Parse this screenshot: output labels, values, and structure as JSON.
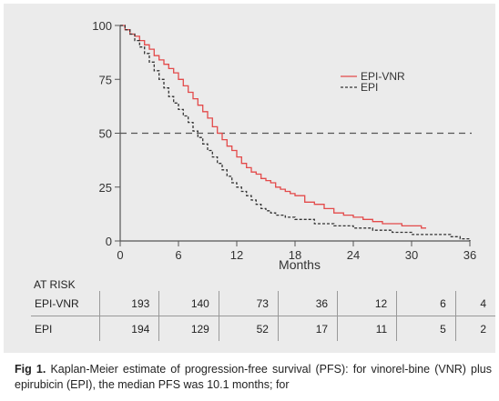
{
  "chart_data": {
    "type": "line",
    "title": "",
    "xlabel": "Months",
    "ylabel": "",
    "xlim": [
      0,
      36
    ],
    "ylim": [
      0,
      100
    ],
    "x_ticks": [
      "0",
      "6",
      "12",
      "18",
      "24",
      "30",
      "36"
    ],
    "y_ticks": [
      "0",
      "25",
      "50",
      "75",
      "100"
    ],
    "reference_line": {
      "y": 50,
      "style": "dashed",
      "color": "#555555"
    },
    "legend_position": "top-right",
    "series": [
      {
        "name": "EPI-VNR",
        "color": "#e34a4a",
        "style": "solid",
        "x": [
          0,
          0.5,
          1,
          1.5,
          2,
          2.5,
          3,
          3.5,
          4,
          4.5,
          5,
          5.5,
          6,
          6.5,
          7,
          7.5,
          8,
          8.5,
          9,
          9.5,
          10,
          10.5,
          11,
          11.5,
          12,
          12.5,
          13,
          13.5,
          14,
          14.5,
          15,
          15.5,
          16,
          16.5,
          17,
          17.5,
          18,
          19,
          20,
          21,
          22,
          23,
          24,
          25,
          26,
          27,
          28,
          29,
          30,
          31,
          31.5
        ],
        "y": [
          100,
          98,
          96,
          95,
          93,
          91,
          89,
          86,
          84,
          82,
          80,
          78,
          75,
          72,
          69,
          66,
          63,
          60,
          57,
          53,
          50,
          47,
          44,
          42,
          39,
          36,
          34,
          32,
          31,
          29,
          28,
          27,
          25,
          24,
          23,
          22,
          21,
          18,
          17,
          15,
          13,
          12,
          11,
          10,
          9,
          8,
          8,
          7,
          7,
          6,
          6
        ]
      },
      {
        "name": "EPI",
        "color": "#333333",
        "style": "dashed",
        "x": [
          0,
          0.5,
          1,
          1.5,
          2,
          2.5,
          3,
          3.5,
          4,
          4.5,
          5,
          5.5,
          6,
          6.5,
          7,
          7.5,
          8,
          8.5,
          9,
          9.5,
          10,
          10.5,
          11,
          11.5,
          12,
          12.5,
          13,
          13.5,
          14,
          14.5,
          15,
          15.5,
          16,
          17,
          18,
          20,
          22,
          24,
          26,
          28,
          30,
          32,
          34,
          35,
          36
        ],
        "y": [
          100,
          98,
          96,
          93,
          90,
          87,
          83,
          79,
          75,
          71,
          67,
          64,
          61,
          58,
          55,
          51,
          48,
          45,
          42,
          39,
          36,
          33,
          30,
          27,
          25,
          23,
          21,
          19,
          17,
          15,
          14,
          13,
          12,
          11,
          10,
          8,
          7,
          6,
          5,
          4,
          3,
          3,
          2,
          1,
          0
        ]
      }
    ]
  },
  "at_risk": {
    "title": "AT RISK",
    "rows": [
      {
        "label": "EPI-VNR",
        "values": [
          "193",
          "140",
          "73",
          "36",
          "12",
          "6",
          "4"
        ]
      },
      {
        "label": "EPI",
        "values": [
          "194",
          "129",
          "52",
          "17",
          "11",
          "5",
          "2"
        ]
      }
    ]
  },
  "caption": {
    "label": "Fig 1.",
    "text": "Kaplan-Meier estimate of progression-free survival (PFS): for vinorel-bine (VNR) plus epirubicin (EPI), the median PFS was 10.1 months; for"
  }
}
